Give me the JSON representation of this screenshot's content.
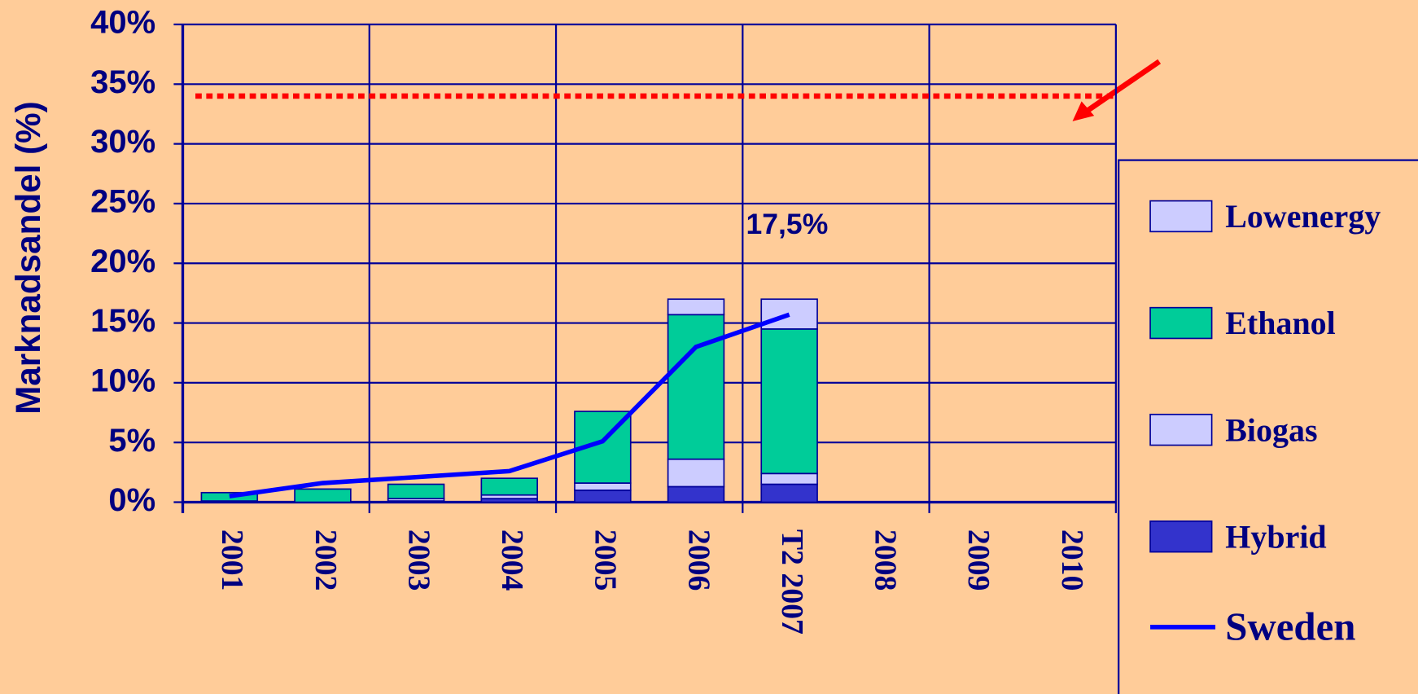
{
  "chart_data": {
    "type": "bar",
    "stacked": true,
    "y_label": "Marknadsandel (%)",
    "annotation": "17,5%",
    "target": 34,
    "target_color": "#ff0000",
    "categories": [
      "2001",
      "2002",
      "2003",
      "2004",
      "2005",
      "2006",
      "T2 2007",
      "2008",
      "2009",
      "2010"
    ],
    "series": [
      {
        "name": "Hybrid",
        "type": "bar",
        "color": "#3333cc",
        "values": [
          0.1,
          0,
          0.1,
          0.3,
          1.0,
          1.3,
          1.5,
          null,
          null,
          null
        ]
      },
      {
        "name": "Biogas",
        "type": "bar",
        "color": "#ccccff",
        "values": [
          0,
          0,
          0.2,
          0.3,
          0.6,
          2.3,
          0.9,
          null,
          null,
          null
        ]
      },
      {
        "name": "Ethanol",
        "type": "bar",
        "color": "#00cc99",
        "values": [
          0.7,
          1.1,
          1.2,
          1.4,
          6.0,
          12.1,
          12.1,
          null,
          null,
          null
        ]
      },
      {
        "name": "Lowenergy",
        "type": "bar",
        "color": "#ccccff",
        "values": [
          0,
          0,
          0,
          0,
          0,
          1.3,
          2.5,
          null,
          null,
          null
        ]
      },
      {
        "name": "Sweden",
        "type": "line",
        "color": "#0000ff",
        "values": [
          0.5,
          1.6,
          2.1,
          2.6,
          5.1,
          13.0,
          15.7,
          null,
          null,
          null
        ]
      }
    ],
    "ylim": [
      0,
      40
    ],
    "yticks": [
      {
        "value": 0,
        "label": "0%"
      },
      {
        "value": 5,
        "label": "5%"
      },
      {
        "value": 10,
        "label": "10%"
      },
      {
        "value": 15,
        "label": "15%"
      },
      {
        "value": 20,
        "label": "20%"
      },
      {
        "value": 25,
        "label": "25%"
      },
      {
        "value": 30,
        "label": "30%"
      },
      {
        "value": 35,
        "label": "35%"
      },
      {
        "value": 40,
        "label": "40%"
      }
    ],
    "grid": true
  }
}
